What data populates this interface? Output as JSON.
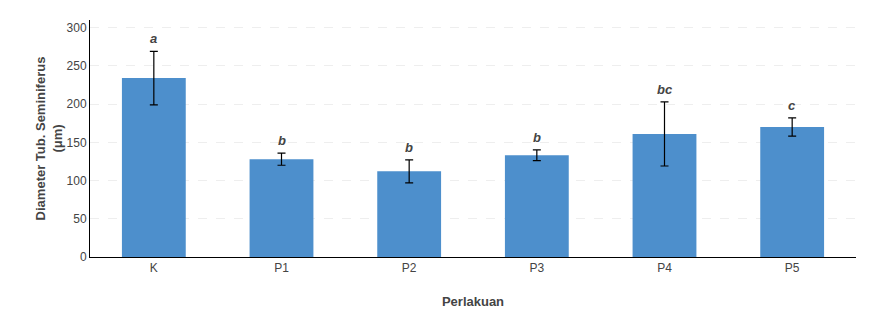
{
  "chart_data": {
    "type": "bar",
    "categories": [
      "K",
      "P1",
      "P2",
      "P3",
      "P4",
      "P5"
    ],
    "values": [
      234,
      128,
      112,
      133,
      161,
      170
    ],
    "errors": [
      35,
      8,
      15,
      7,
      42,
      12
    ],
    "annotations": [
      "a",
      "b",
      "b",
      "b",
      "bc",
      "c"
    ],
    "color": "#4d8fcc",
    "xlabel": "Perlakuan",
    "ylabel": "Diameter Tub. Seminiferus\n(μm)",
    "ylim": [
      0,
      310
    ],
    "yticks": [
      0,
      50,
      100,
      150,
      200,
      250,
      300
    ],
    "grid": true
  }
}
